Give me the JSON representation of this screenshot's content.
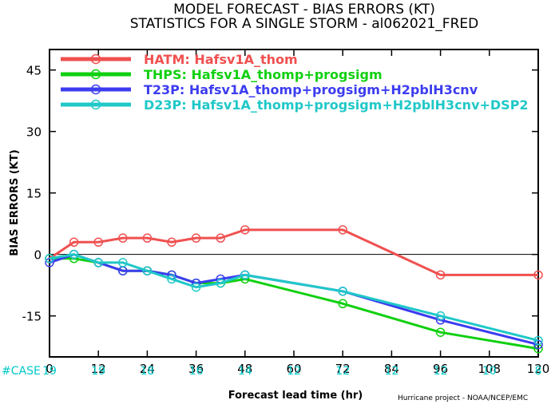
{
  "chart_data": {
    "type": "line",
    "title": "MODEL FORECAST - BIAS ERRORS (KT)",
    "subtitle": "STATISTICS FOR A SINGLE STORM - al062021_FRED",
    "xlabel": "Forecast lead time (hr)",
    "ylabel": "BIAS ERRORS (KT)",
    "xlim": [
      0,
      120
    ],
    "ylim": [
      -25,
      50
    ],
    "xticks": [
      0,
      12,
      24,
      36,
      48,
      60,
      72,
      84,
      96,
      108,
      120
    ],
    "yticks": [
      -15,
      0,
      15,
      30,
      45
    ],
    "zero_line": true,
    "legend_position": "top-left",
    "series": [
      {
        "name": "HATM: Hafsv1A_thom",
        "color": "#f05050",
        "x": [
          0,
          6,
          12,
          18,
          24,
          30,
          36,
          42,
          48,
          72,
          96,
          120
        ],
        "y": [
          -1,
          3,
          3,
          4,
          4,
          3,
          4,
          4,
          6,
          6,
          -5,
          -5
        ]
      },
      {
        "name": "THPS: Hafsv1A_thomp+progsigm",
        "color": "#10d010",
        "x": [
          0,
          6,
          12,
          18,
          24,
          30,
          36,
          42,
          48,
          72,
          96,
          120
        ],
        "y": [
          -1,
          -1,
          -2,
          -4,
          -4,
          -5,
          -7,
          -7,
          -6,
          -12,
          -19,
          -23
        ]
      },
      {
        "name": "T23P: Hafsv1A_thomp+progsigm+H2pblH3cnv",
        "color": "#3c3cf0",
        "x": [
          0,
          6,
          12,
          18,
          24,
          30,
          36,
          42,
          48,
          72,
          96,
          120
        ],
        "y": [
          -2,
          0,
          -2,
          -4,
          -4,
          -5,
          -7,
          -6,
          -5,
          -9,
          -16,
          -22
        ]
      },
      {
        "name": "D23P: Hafsv1A_thomp+progsigm+H2pblH3cnv+DSP2",
        "color": "#20c8c8",
        "x": [
          0,
          6,
          12,
          18,
          24,
          30,
          36,
          42,
          48,
          72,
          96,
          120
        ],
        "y": [
          -1,
          0,
          -2,
          -2,
          -4,
          -6,
          -8,
          -7,
          -5,
          -9,
          -15,
          -21
        ]
      }
    ],
    "case_label": "#CASE",
    "case_x": [
      0,
      12,
      24,
      36,
      48,
      60,
      72,
      84,
      96,
      108,
      120
    ],
    "case_counts": [
      "19",
      "19",
      "18",
      "16",
      "14",
      "12",
      "12",
      "12",
      "12",
      "10",
      "8"
    ],
    "credit": "Hurricane project - NOAA/NCEP/EMC"
  }
}
